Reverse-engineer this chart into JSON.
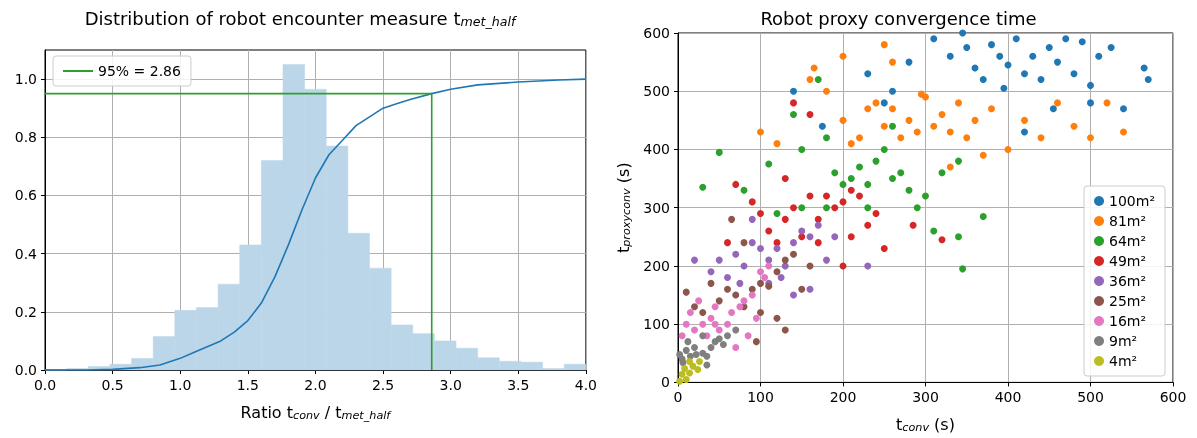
{
  "chart_data": [
    {
      "type": "histogram",
      "title": "Distribution of robot encounter measure t$_{met_half}$",
      "xlabel": "Ratio t$_{conv}$ / t$_{met_half}$",
      "bins": [
        0,
        0.16,
        0.32,
        0.48,
        0.64,
        0.8,
        0.96,
        1.12,
        1.28,
        1.44,
        1.6,
        1.76,
        1.92,
        2.08,
        2.24,
        2.4,
        2.56,
        2.72,
        2.88,
        3.04,
        3.2,
        3.36,
        3.52,
        3.68,
        3.84,
        4.0
      ],
      "series": [
        {
          "type": "histogram",
          "color": "#bcd6e9",
          "values": [
            0,
            0.005,
            0.012,
            0.02,
            0.04,
            0.115,
            0.205,
            0.215,
            0.295,
            0.43,
            0.72,
            1.05,
            0.965,
            0.77,
            0.47,
            0.35,
            0.155,
            0.125,
            0.1,
            0.075,
            0.042,
            0.03,
            0.027,
            0.005,
            0.02
          ]
        },
        {
          "type": "line",
          "color": "#1f77b4",
          "x": [
            0,
            0.3,
            0.5,
            0.7,
            0.85,
            1.0,
            1.1,
            1.2,
            1.3,
            1.4,
            1.5,
            1.6,
            1.7,
            1.8,
            1.9,
            2.0,
            2.1,
            2.2,
            2.3,
            2.4,
            2.5,
            2.6,
            2.7,
            2.86,
            3.0,
            3.2,
            3.5,
            3.8,
            4.0
          ],
          "values": [
            0,
            0,
            0.002,
            0.008,
            0.017,
            0.04,
            0.06,
            0.08,
            0.1,
            0.13,
            0.17,
            0.23,
            0.32,
            0.43,
            0.55,
            0.66,
            0.74,
            0.79,
            0.84,
            0.87,
            0.9,
            0.915,
            0.93,
            0.95,
            0.965,
            0.98,
            0.99,
            0.997,
            1.0
          ]
        },
        {
          "type": "line",
          "name": "95% = 2.86",
          "color": "#2ca02c",
          "x": [
            0,
            2.86,
            2.86
          ],
          "values": [
            0.95,
            0.95,
            0
          ]
        }
      ],
      "xlim": [
        0,
        4
      ],
      "xticks": [
        {
          "value": 0,
          "label": "0.0"
        },
        0.5,
        {
          "value": 1,
          "label": "1.0"
        },
        1.5,
        {
          "value": 2,
          "label": "2.0"
        },
        2.5,
        {
          "value": 3,
          "label": "3.0"
        },
        3.5,
        {
          "value": 4,
          "label": "4.0"
        }
      ],
      "ylim": [
        0,
        1.1
      ],
      "yticks": [
        {
          "value": 0,
          "label": "0.0"
        },
        0.2,
        0.4,
        0.6,
        0.8,
        {
          "value": 1,
          "label": "1.0"
        }
      ],
      "grid": true,
      "legend": "top left",
      "marker": "none"
    },
    {
      "type": "scatter",
      "title": "Robot proxy convergence time",
      "xlabel": "t$_{conv}$ (s)",
      "ylabel": "t$_{proxyconv}$ (s)",
      "series": [
        {
          "name": "100m²",
          "color": "#1f77b4",
          "x": [
            310,
            330,
            350,
            360,
            370,
            380,
            390,
            400,
            410,
            420,
            430,
            440,
            450,
            460,
            470,
            480,
            490,
            500,
            510,
            525,
            540,
            565,
            570,
            280,
            260,
            345,
            395,
            455,
            420,
            500,
            230,
            175,
            140,
            250
          ],
          "values": [
            590,
            560,
            575,
            540,
            520,
            580,
            560,
            545,
            590,
            530,
            560,
            520,
            575,
            550,
            590,
            530,
            585,
            510,
            560,
            575,
            470,
            540,
            520,
            550,
            500,
            600,
            505,
            470,
            430,
            480,
            530,
            440,
            500,
            480
          ]
        },
        {
          "name": "81m²",
          "color": "#ff7f0e",
          "x": [
            100,
            120,
            160,
            180,
            200,
            210,
            220,
            230,
            240,
            250,
            260,
            270,
            280,
            290,
            300,
            310,
            320,
            330,
            340,
            350,
            360,
            380,
            400,
            420,
            440,
            460,
            480,
            500,
            520,
            540,
            250,
            260,
            330,
            370,
            165,
            200,
            295
          ],
          "values": [
            430,
            410,
            520,
            500,
            450,
            410,
            420,
            470,
            480,
            440,
            470,
            420,
            450,
            430,
            490,
            440,
            460,
            430,
            480,
            420,
            450,
            470,
            400,
            450,
            420,
            480,
            440,
            420,
            480,
            430,
            580,
            550,
            370,
            390,
            540,
            560,
            495
          ]
        },
        {
          "name": "64m²",
          "color": "#2ca02c",
          "x": [
            50,
            30,
            80,
            110,
            140,
            150,
            170,
            180,
            190,
            200,
            210,
            220,
            230,
            240,
            250,
            260,
            270,
            280,
            290,
            300,
            320,
            340,
            345,
            370,
            150,
            180,
            120,
            260,
            340,
            310,
            230
          ],
          "values": [
            395,
            335,
            330,
            375,
            460,
            400,
            520,
            420,
            360,
            340,
            350,
            370,
            340,
            380,
            400,
            350,
            360,
            330,
            300,
            320,
            360,
            250,
            195,
            285,
            300,
            300,
            290,
            440,
            380,
            260,
            300
          ]
        },
        {
          "name": "49m²",
          "color": "#d62728",
          "x": [
            70,
            90,
            100,
            110,
            120,
            130,
            140,
            150,
            160,
            170,
            180,
            190,
            200,
            210,
            220,
            230,
            240,
            250,
            210,
            200,
            170,
            320,
            285,
            160,
            140,
            60,
            130
          ],
          "values": [
            340,
            310,
            290,
            260,
            240,
            280,
            300,
            250,
            320,
            280,
            320,
            300,
            310,
            330,
            320,
            270,
            290,
            230,
            250,
            200,
            240,
            245,
            270,
            460,
            480,
            240,
            350
          ]
        },
        {
          "name": "36m²",
          "color": "#9467bd",
          "x": [
            20,
            40,
            50,
            60,
            70,
            80,
            90,
            100,
            110,
            120,
            130,
            140,
            150,
            160,
            170,
            180,
            140,
            160,
            125,
            90,
            75,
            110,
            230,
            190
          ],
          "values": [
            210,
            190,
            210,
            180,
            220,
            200,
            240,
            230,
            210,
            230,
            200,
            240,
            260,
            250,
            270,
            210,
            150,
            160,
            180,
            280,
            170,
            170,
            200,
            250
          ]
        },
        {
          "name": "25m²",
          "color": "#8c564b",
          "x": [
            10,
            20,
            30,
            40,
            50,
            60,
            70,
            80,
            90,
            100,
            110,
            120,
            130,
            140,
            100,
            120,
            130,
            95,
            150,
            65,
            80,
            160
          ],
          "values": [
            155,
            130,
            120,
            170,
            140,
            160,
            150,
            130,
            160,
            170,
            165,
            190,
            210,
            220,
            120,
            110,
            90,
            70,
            160,
            280,
            240,
            200
          ]
        },
        {
          "name": "16m²",
          "color": "#e377c2",
          "x": [
            5,
            10,
            15,
            20,
            30,
            35,
            40,
            50,
            60,
            65,
            75,
            80,
            90,
            100,
            105,
            110,
            45,
            70,
            85,
            25,
            45,
            95
          ],
          "values": [
            80,
            100,
            120,
            90,
            100,
            80,
            110,
            90,
            100,
            120,
            130,
            140,
            150,
            190,
            180,
            200,
            100,
            60,
            80,
            140,
            130,
            110
          ]
        },
        {
          "name": "9m²",
          "color": "#7f7f7f",
          "x": [
            2,
            5,
            6,
            10,
            15,
            20,
            22,
            30,
            35,
            40,
            45,
            50,
            55,
            60,
            35,
            12,
            30,
            70
          ],
          "values": [
            48,
            40,
            34,
            55,
            45,
            60,
            48,
            50,
            45,
            60,
            70,
            75,
            65,
            80,
            30,
            70,
            80,
            90
          ]
        },
        {
          "name": "4m²",
          "color": "#bcbd22",
          "x": [
            2,
            10,
            5,
            14,
            8,
            18,
            24,
            14,
            26
          ],
          "values": [
            2,
            5,
            14,
            16,
            24,
            28,
            22,
            36,
            36
          ]
        }
      ],
      "xlim": [
        0,
        600
      ],
      "xticks": [
        0,
        100,
        200,
        300,
        400,
        500,
        600
      ],
      "ylim": [
        0,
        600
      ],
      "yticks": [
        0,
        100,
        200,
        300,
        400,
        500,
        600
      ],
      "grid": true,
      "legend": "bottom right",
      "marker": "circle"
    }
  ]
}
